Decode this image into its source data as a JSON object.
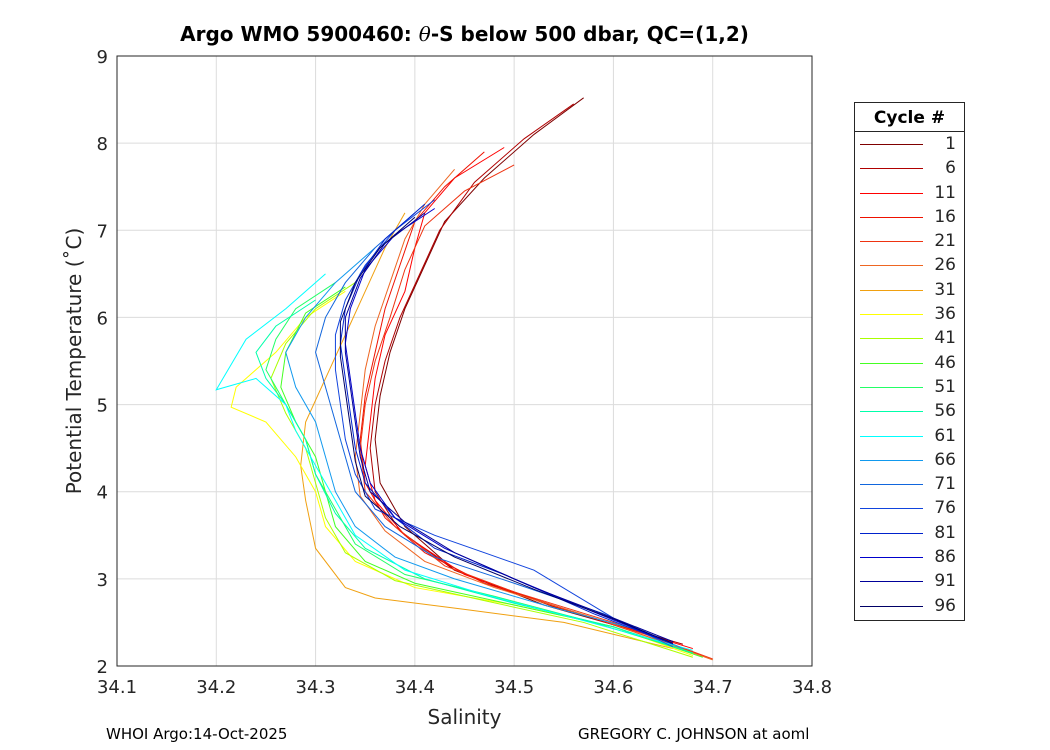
{
  "chart_data": {
    "type": "line",
    "title_prefix": "Argo WMO 5900460: ",
    "title_theta": "θ",
    "title_suffix": "-S below 500 dbar,  QC=(1,2)",
    "xlabel": "Salinity",
    "ylabel": "Potential Temperature (˚C)",
    "xlim": [
      34.1,
      34.8
    ],
    "ylim": [
      2,
      9
    ],
    "xticks": [
      "34.1",
      "34.2",
      "34.3",
      "34.4",
      "34.5",
      "34.6",
      "34.7",
      "34.8"
    ],
    "yticks": [
      "2",
      "3",
      "4",
      "5",
      "6",
      "7",
      "8",
      "9"
    ],
    "grid": true,
    "legend_title": "Cycle #",
    "legend_placement": "right-outside",
    "series": [
      {
        "name": "1",
        "color": "#7f0000",
        "points": [
          [
            34.57,
            8.52
          ],
          [
            34.52,
            8.1
          ],
          [
            34.47,
            7.6
          ],
          [
            34.43,
            7.1
          ],
          [
            34.41,
            6.6
          ],
          [
            34.39,
            6.1
          ],
          [
            34.375,
            5.6
          ],
          [
            34.365,
            5.1
          ],
          [
            34.36,
            4.6
          ],
          [
            34.365,
            4.1
          ],
          [
            34.39,
            3.6
          ],
          [
            34.44,
            3.1
          ],
          [
            34.53,
            2.7
          ],
          [
            34.66,
            2.28
          ]
        ]
      },
      {
        "name": "6",
        "color": "#b00000",
        "points": [
          [
            34.56,
            8.45
          ],
          [
            34.51,
            8.05
          ],
          [
            34.46,
            7.55
          ],
          [
            34.425,
            7.0
          ],
          [
            34.405,
            6.5
          ],
          [
            34.385,
            6.0
          ],
          [
            34.37,
            5.5
          ],
          [
            34.36,
            5.0
          ],
          [
            34.355,
            4.5
          ],
          [
            34.36,
            4.0
          ],
          [
            34.385,
            3.55
          ],
          [
            34.44,
            3.1
          ],
          [
            34.54,
            2.68
          ],
          [
            34.67,
            2.25
          ]
        ]
      },
      {
        "name": "11",
        "color": "#ff0000",
        "points": [
          [
            34.49,
            7.95
          ],
          [
            34.44,
            7.6
          ],
          [
            34.41,
            7.2
          ],
          [
            34.4,
            6.8
          ],
          [
            34.39,
            6.3
          ],
          [
            34.37,
            5.8
          ],
          [
            34.36,
            5.3
          ],
          [
            34.355,
            4.8
          ],
          [
            34.35,
            4.3
          ],
          [
            34.36,
            3.9
          ],
          [
            34.39,
            3.5
          ],
          [
            34.45,
            3.05
          ],
          [
            34.55,
            2.65
          ],
          [
            34.68,
            2.2
          ]
        ]
      },
      {
        "name": "16",
        "color": "#ee1100",
        "points": [
          [
            34.47,
            7.9
          ],
          [
            34.43,
            7.5
          ],
          [
            34.4,
            7.1
          ],
          [
            34.385,
            6.6
          ],
          [
            34.37,
            6.1
          ],
          [
            34.36,
            5.6
          ],
          [
            34.35,
            5.1
          ],
          [
            34.345,
            4.6
          ],
          [
            34.35,
            4.1
          ],
          [
            34.37,
            3.7
          ],
          [
            34.41,
            3.3
          ],
          [
            34.47,
            2.95
          ],
          [
            34.58,
            2.55
          ],
          [
            34.69,
            2.12
          ]
        ]
      },
      {
        "name": "21",
        "color": "#ee3311",
        "points": [
          [
            34.5,
            7.75
          ],
          [
            34.45,
            7.45
          ],
          [
            34.41,
            7.05
          ],
          [
            34.39,
            6.55
          ],
          [
            34.375,
            6.0
          ],
          [
            34.36,
            5.5
          ],
          [
            34.35,
            5.0
          ],
          [
            34.345,
            4.5
          ],
          [
            34.35,
            4.0
          ],
          [
            34.38,
            3.6
          ],
          [
            34.43,
            3.15
          ],
          [
            34.5,
            2.85
          ],
          [
            34.6,
            2.5
          ],
          [
            34.7,
            2.08
          ]
        ]
      },
      {
        "name": "26",
        "color": "#ee6622",
        "points": [
          [
            34.44,
            7.7
          ],
          [
            34.41,
            7.3
          ],
          [
            34.39,
            6.9
          ],
          [
            34.375,
            6.4
          ],
          [
            34.36,
            5.9
          ],
          [
            34.35,
            5.4
          ],
          [
            34.345,
            4.9
          ],
          [
            34.34,
            4.4
          ],
          [
            34.345,
            3.95
          ],
          [
            34.37,
            3.55
          ],
          [
            34.41,
            3.2
          ],
          [
            34.48,
            2.9
          ],
          [
            34.59,
            2.52
          ],
          [
            34.7,
            2.07
          ]
        ]
      },
      {
        "name": "31",
        "color": "#f0a010",
        "points": [
          [
            34.39,
            7.2
          ],
          [
            34.37,
            6.8
          ],
          [
            34.35,
            6.3
          ],
          [
            34.33,
            5.8
          ],
          [
            34.31,
            5.3
          ],
          [
            34.29,
            4.8
          ],
          [
            34.285,
            4.3
          ],
          [
            34.29,
            3.9
          ],
          [
            34.3,
            3.35
          ],
          [
            34.33,
            2.9
          ],
          [
            34.36,
            2.78
          ],
          [
            34.45,
            2.65
          ],
          [
            34.55,
            2.5
          ],
          [
            34.66,
            2.2
          ]
        ]
      },
      {
        "name": "36",
        "color": "#ffff00",
        "points": [
          [
            34.33,
            6.3
          ],
          [
            34.29,
            6.0
          ],
          [
            34.26,
            5.6
          ],
          [
            34.22,
            5.2
          ],
          [
            34.215,
            4.97
          ],
          [
            34.25,
            4.8
          ],
          [
            34.28,
            4.4
          ],
          [
            34.3,
            4.0
          ],
          [
            34.31,
            3.6
          ],
          [
            34.34,
            3.2
          ],
          [
            34.4,
            2.9
          ],
          [
            34.5,
            2.7
          ],
          [
            34.6,
            2.45
          ],
          [
            34.68,
            2.12
          ]
        ]
      },
      {
        "name": "41",
        "color": "#aaff00",
        "points": [
          [
            34.34,
            6.4
          ],
          [
            34.3,
            6.1
          ],
          [
            34.27,
            5.7
          ],
          [
            34.255,
            5.3
          ],
          [
            34.27,
            4.9
          ],
          [
            34.29,
            4.5
          ],
          [
            34.3,
            4.1
          ],
          [
            34.31,
            3.7
          ],
          [
            34.33,
            3.3
          ],
          [
            34.38,
            2.98
          ],
          [
            34.47,
            2.75
          ],
          [
            34.57,
            2.5
          ],
          [
            34.68,
            2.1
          ]
        ]
      },
      {
        "name": "46",
        "color": "#44ff22",
        "points": [
          [
            34.33,
            6.35
          ],
          [
            34.29,
            6.05
          ],
          [
            34.27,
            5.6
          ],
          [
            34.265,
            5.2
          ],
          [
            34.28,
            4.8
          ],
          [
            34.3,
            4.4
          ],
          [
            34.31,
            4.0
          ],
          [
            34.32,
            3.6
          ],
          [
            34.35,
            3.2
          ],
          [
            34.4,
            2.95
          ],
          [
            34.5,
            2.7
          ],
          [
            34.6,
            2.45
          ],
          [
            34.69,
            2.1
          ]
        ]
      },
      {
        "name": "51",
        "color": "#22ff66",
        "points": [
          [
            34.32,
            6.4
          ],
          [
            34.28,
            6.1
          ],
          [
            34.26,
            5.75
          ],
          [
            34.25,
            5.4
          ],
          [
            34.27,
            5.0
          ],
          [
            34.29,
            4.6
          ],
          [
            34.3,
            4.2
          ],
          [
            34.32,
            3.8
          ],
          [
            34.34,
            3.4
          ],
          [
            34.39,
            3.05
          ],
          [
            34.48,
            2.8
          ],
          [
            34.58,
            2.5
          ],
          [
            34.68,
            2.15
          ]
        ]
      },
      {
        "name": "56",
        "color": "#00ffaa",
        "points": [
          [
            34.3,
            6.2
          ],
          [
            34.26,
            5.9
          ],
          [
            34.24,
            5.6
          ],
          [
            34.25,
            5.3
          ],
          [
            34.27,
            5.0
          ],
          [
            34.29,
            4.6
          ],
          [
            34.3,
            4.2
          ],
          [
            34.32,
            3.75
          ],
          [
            34.35,
            3.35
          ],
          [
            34.41,
            3.0
          ],
          [
            34.5,
            2.72
          ],
          [
            34.6,
            2.45
          ],
          [
            34.68,
            2.15
          ]
        ]
      },
      {
        "name": "61",
        "color": "#00ffff",
        "points": [
          [
            34.31,
            6.5
          ],
          [
            34.27,
            6.1
          ],
          [
            34.23,
            5.75
          ],
          [
            34.2,
            5.17
          ],
          [
            34.24,
            5.3
          ],
          [
            34.27,
            5.0
          ],
          [
            34.28,
            4.7
          ],
          [
            34.3,
            4.3
          ],
          [
            34.32,
            3.9
          ],
          [
            34.34,
            3.5
          ],
          [
            34.39,
            3.1
          ],
          [
            34.47,
            2.82
          ],
          [
            34.57,
            2.52
          ],
          [
            34.68,
            2.18
          ]
        ]
      },
      {
        "name": "66",
        "color": "#1199ee",
        "points": [
          [
            34.36,
            6.8
          ],
          [
            34.32,
            6.4
          ],
          [
            34.29,
            6.0
          ],
          [
            34.27,
            5.6
          ],
          [
            34.28,
            5.2
          ],
          [
            34.3,
            4.8
          ],
          [
            34.31,
            4.4
          ],
          [
            34.32,
            4.0
          ],
          [
            34.34,
            3.6
          ],
          [
            34.38,
            3.25
          ],
          [
            34.44,
            3.0
          ],
          [
            34.53,
            2.7
          ],
          [
            34.63,
            2.4
          ],
          [
            34.67,
            2.2
          ]
        ]
      },
      {
        "name": "71",
        "color": "#1166dd",
        "points": [
          [
            34.4,
            7.2
          ],
          [
            34.36,
            6.8
          ],
          [
            34.33,
            6.4
          ],
          [
            34.31,
            6.0
          ],
          [
            34.3,
            5.6
          ],
          [
            34.31,
            5.2
          ],
          [
            34.32,
            4.8
          ],
          [
            34.33,
            4.4
          ],
          [
            34.34,
            4.0
          ],
          [
            34.37,
            3.6
          ],
          [
            34.42,
            3.25
          ],
          [
            34.5,
            2.95
          ],
          [
            34.59,
            2.6
          ],
          [
            34.66,
            2.22
          ]
        ]
      },
      {
        "name": "76",
        "color": "#1144dd",
        "points": [
          [
            34.42,
            7.35
          ],
          [
            34.38,
            7.0
          ],
          [
            34.35,
            6.6
          ],
          [
            34.33,
            6.2
          ],
          [
            34.32,
            5.8
          ],
          [
            34.32,
            5.4
          ],
          [
            34.325,
            5.0
          ],
          [
            34.33,
            4.6
          ],
          [
            34.34,
            4.2
          ],
          [
            34.36,
            3.8
          ],
          [
            34.42,
            3.5
          ],
          [
            34.47,
            3.3
          ],
          [
            34.52,
            3.1
          ],
          [
            34.6,
            2.55
          ],
          [
            34.66,
            2.25
          ]
        ]
      },
      {
        "name": "81",
        "color": "#0022cc",
        "points": [
          [
            34.41,
            7.3
          ],
          [
            34.37,
            6.9
          ],
          [
            34.345,
            6.5
          ],
          [
            34.33,
            6.1
          ],
          [
            34.325,
            5.7
          ],
          [
            34.33,
            5.3
          ],
          [
            34.335,
            4.9
          ],
          [
            34.34,
            4.5
          ],
          [
            34.35,
            4.1
          ],
          [
            34.38,
            3.7
          ],
          [
            34.42,
            3.35
          ],
          [
            34.49,
            3.05
          ],
          [
            34.58,
            2.6
          ],
          [
            34.66,
            2.25
          ]
        ]
      },
      {
        "name": "86",
        "color": "#0000cc",
        "points": [
          [
            34.42,
            7.25
          ],
          [
            34.38,
            6.95
          ],
          [
            34.35,
            6.55
          ],
          [
            34.335,
            6.1
          ],
          [
            34.33,
            5.7
          ],
          [
            34.335,
            5.3
          ],
          [
            34.34,
            4.9
          ],
          [
            34.345,
            4.5
          ],
          [
            34.355,
            4.1
          ],
          [
            34.38,
            3.7
          ],
          [
            34.43,
            3.35
          ],
          [
            34.5,
            3.0
          ],
          [
            34.58,
            2.62
          ],
          [
            34.65,
            2.3
          ]
        ]
      },
      {
        "name": "91",
        "color": "#000099",
        "points": [
          [
            34.41,
            7.2
          ],
          [
            34.37,
            6.85
          ],
          [
            34.345,
            6.45
          ],
          [
            34.33,
            6.0
          ],
          [
            34.33,
            5.6
          ],
          [
            34.335,
            5.2
          ],
          [
            34.34,
            4.8
          ],
          [
            34.345,
            4.4
          ],
          [
            34.355,
            4.0
          ],
          [
            34.39,
            3.65
          ],
          [
            34.44,
            3.3
          ],
          [
            34.52,
            2.9
          ],
          [
            34.6,
            2.55
          ],
          [
            34.66,
            2.28
          ]
        ]
      },
      {
        "name": "96",
        "color": "#000066",
        "points": [
          [
            34.4,
            7.15
          ],
          [
            34.365,
            6.8
          ],
          [
            34.34,
            6.4
          ],
          [
            34.325,
            5.95
          ],
          [
            34.325,
            5.55
          ],
          [
            34.33,
            5.15
          ],
          [
            34.335,
            4.75
          ],
          [
            34.34,
            4.35
          ],
          [
            34.35,
            3.95
          ],
          [
            34.385,
            3.6
          ],
          [
            34.44,
            3.25
          ],
          [
            34.52,
            2.88
          ],
          [
            34.6,
            2.54
          ],
          [
            34.66,
            2.26
          ]
        ]
      }
    ]
  },
  "footer": {
    "left": "WHOI Argo:14-Oct-2025",
    "right": "GREGORY C. JOHNSON at aoml"
  }
}
